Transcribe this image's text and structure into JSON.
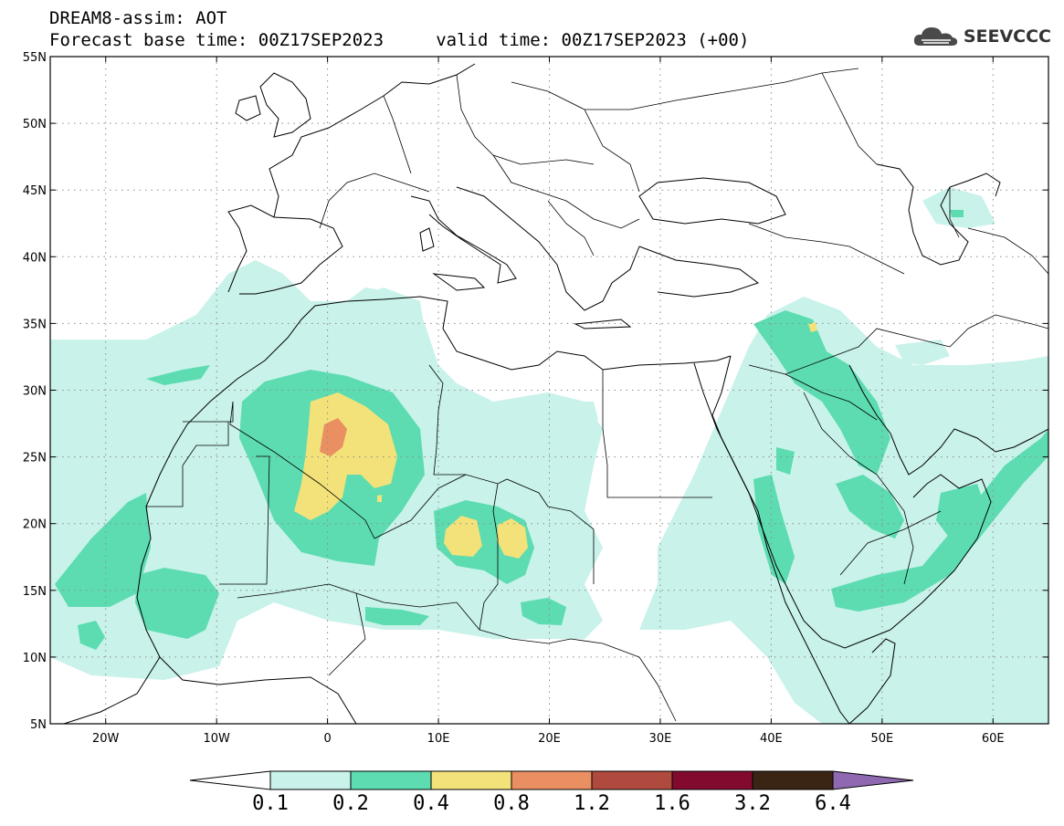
{
  "header": {
    "title_line1": "DREAM8-assim: AOT",
    "title_line2": "Forecast base time: 00Z17SEP2023     valid time: 00Z17SEP2023 (+00)"
  },
  "logo": {
    "text": "SEEVCCC",
    "icon": "cloud-icon",
    "color": "#4a4a4a"
  },
  "map": {
    "lat_range": [
      5,
      55
    ],
    "lon_range": [
      -25,
      65
    ],
    "lat_ticks": [
      "55N",
      "50N",
      "45N",
      "40N",
      "35N",
      "30N",
      "25N",
      "20N",
      "15N",
      "10N",
      "5N"
    ],
    "lon_ticks": [
      "20W",
      "10W",
      "0",
      "10E",
      "20E",
      "30E",
      "40E",
      "50E",
      "60E"
    ],
    "grid": true
  },
  "colorbar": {
    "labels": [
      "0.1",
      "0.2",
      "0.4",
      "0.8",
      "1.2",
      "1.6",
      "3.2",
      "6.4"
    ],
    "colors": [
      "#c8f2ea",
      "#5cdcb0",
      "#f3e27a",
      "#ea8f62",
      "#b04a3e",
      "#820a2e",
      "#3a2414",
      "#8e68b0"
    ],
    "under_color": "#ffffff"
  }
}
